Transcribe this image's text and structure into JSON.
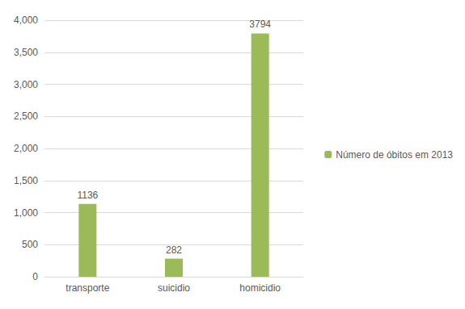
{
  "chart_data": {
    "type": "bar",
    "categories": [
      "transporte",
      "suicidio",
      "homicidio"
    ],
    "series": [
      {
        "name": "Número de óbitos em 2013",
        "color": "#9bbb59",
        "values": [
          1136,
          282,
          3794
        ]
      }
    ],
    "ylim": [
      0,
      4000
    ],
    "yticks": [
      0,
      500,
      1000,
      1500,
      2000,
      2500,
      3000,
      3500,
      4000
    ],
    "grid": true,
    "legend": "right",
    "data_labels": true
  }
}
